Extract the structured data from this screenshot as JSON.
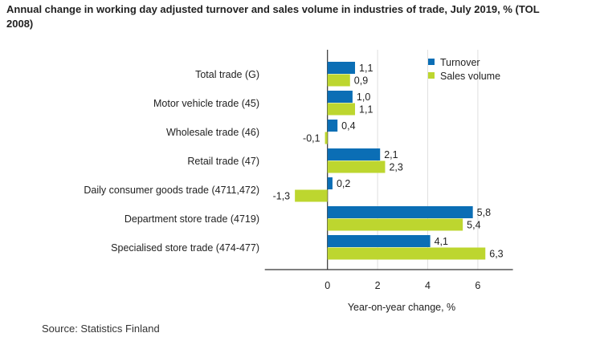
{
  "chart_data": {
    "type": "bar",
    "orientation": "horizontal",
    "title": "Annual change in working day adjusted turnover and sales volume in industries of trade, July 2019, % (TOL 2008)",
    "categories": [
      "Total trade (G)",
      "Motor vehicle trade (45)",
      "Wholesale trade (46)",
      "Retail trade (47)",
      "Daily consumer goods trade (4711,472)",
      "Department store trade (4719)",
      "Specialised store trade (474-477)"
    ],
    "series": [
      {
        "name": "Turnover",
        "values": [
          1.1,
          1.0,
          0.4,
          2.1,
          0.2,
          5.8,
          4.1
        ],
        "labels": [
          "1,1",
          "1,0",
          "0,4",
          "2,1",
          "0,2",
          "5,8",
          "4,1"
        ],
        "color": "#0b6eb5"
      },
      {
        "name": "Sales volume",
        "values": [
          0.9,
          1.1,
          -0.1,
          2.3,
          -1.3,
          5.4,
          6.3
        ],
        "labels": [
          "0,9",
          "1,1",
          "-0,1",
          "2,3",
          "-1,3",
          "5,4",
          "6,3"
        ],
        "color": "#bdd62f"
      }
    ],
    "xlabel": "Year-on-year change, %",
    "xlim": [
      -2.5,
      7.4
    ],
    "xticks": [
      0,
      2,
      4,
      6
    ],
    "grid": true,
    "legend": "top-right"
  },
  "source": "Source: Statistics Finland"
}
